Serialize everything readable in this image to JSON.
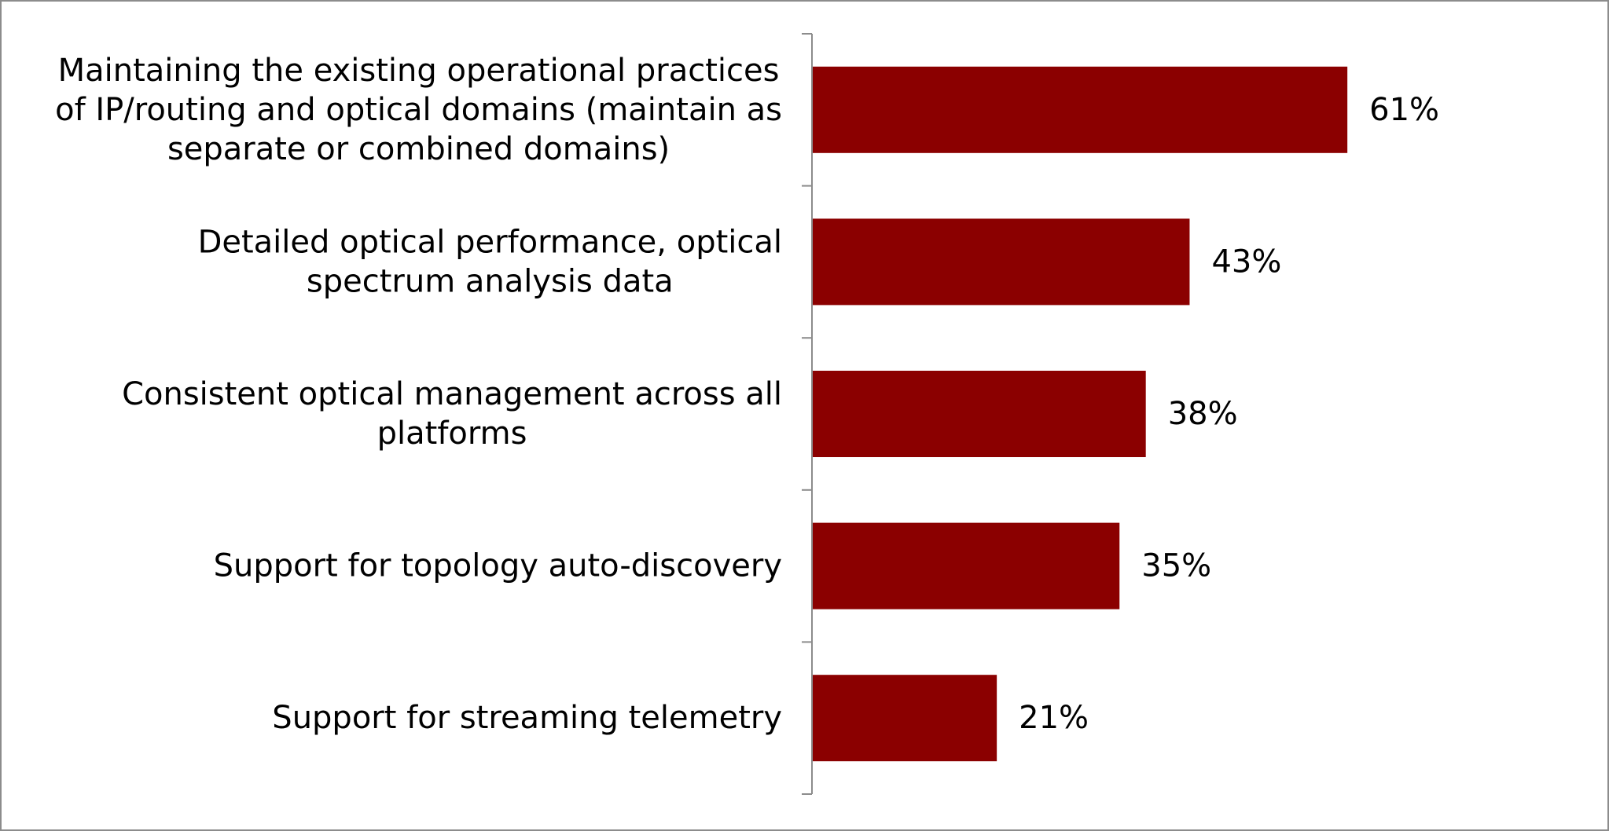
{
  "chart_data": {
    "type": "bar",
    "orientation": "horizontal",
    "categories": [
      [
        "Maintaining the existing operational practices",
        "of IP/routing and optical domains (maintain as",
        "separate or combined domains)"
      ],
      [
        "Detailed optical performance, optical",
        "spectrum analysis data"
      ],
      [
        "Consistent optical management across all",
        "platforms"
      ],
      [
        "Support for topology auto-discovery"
      ],
      [
        "Support for streaming telemetry"
      ]
    ],
    "values": [
      61,
      43,
      38,
      35,
      21
    ],
    "value_labels": [
      "61%",
      "43%",
      "38%",
      "35%",
      "21%"
    ],
    "unit": "%",
    "xlim": [
      0,
      100
    ],
    "grid": false,
    "legend": "none",
    "colors": {
      "bar": "#8b0000",
      "axis": "#8c8c8c",
      "frame": "#8c8c8c",
      "text": "#000000"
    }
  }
}
